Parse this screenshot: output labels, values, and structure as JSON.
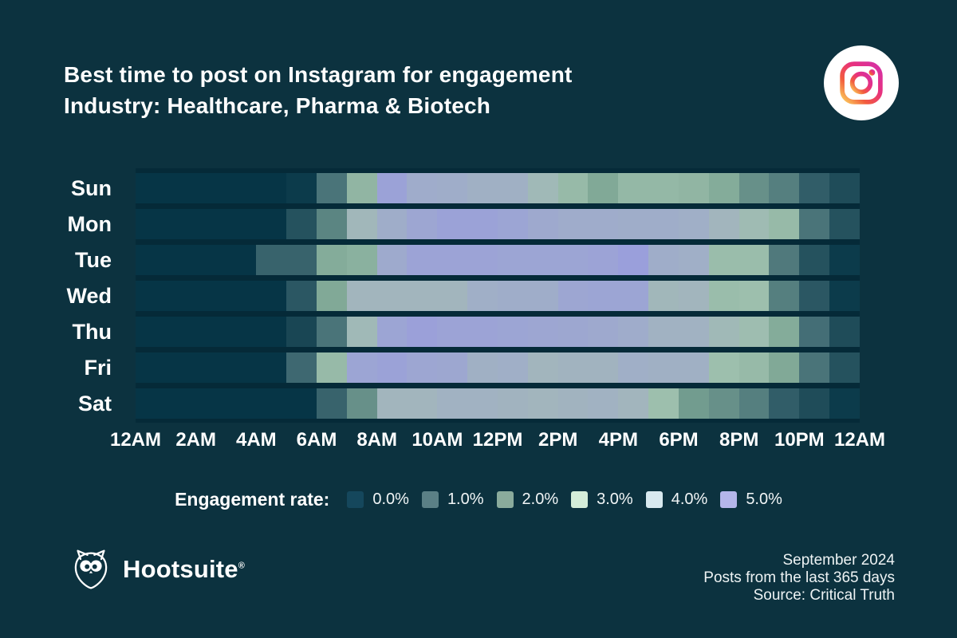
{
  "header": {
    "title_line1": "Best time to post on Instagram for engagement",
    "title_line2": "Industry: Healthcare, Pharma & Biotech"
  },
  "chart_data": {
    "type": "heatmap",
    "title": "Best time to post on Instagram for engagement",
    "subtitle": "Industry: Healthcare, Pharma & Biotech",
    "unit": "engagement rate %",
    "rows": [
      "Sun",
      "Mon",
      "Tue",
      "Wed",
      "Thu",
      "Fri",
      "Sat"
    ],
    "x_tick_labels": [
      "12AM",
      "2AM",
      "4AM",
      "6AM",
      "8AM",
      "10AM",
      "12PM",
      "2PM",
      "4PM",
      "6PM",
      "8PM",
      "10PM",
      "12AM"
    ],
    "hours_per_row": 24,
    "value_range": [
      0,
      5
    ],
    "series": [
      {
        "name": "Sun",
        "values": [
          0.0,
          0.0,
          0.0,
          0.0,
          0.0,
          0.1,
          1.1,
          2.6,
          4.8,
          4.1,
          4.0,
          3.8,
          3.8,
          3.3,
          2.8,
          2.1,
          2.7,
          2.7,
          2.6,
          2.2,
          1.6,
          1.3,
          0.7,
          0.4
        ]
      },
      {
        "name": "Mon",
        "values": [
          0.0,
          0.0,
          0.0,
          0.0,
          0.0,
          0.5,
          1.4,
          3.4,
          4.0,
          4.5,
          4.8,
          4.8,
          4.6,
          4.3,
          4.1,
          4.1,
          4.0,
          4.0,
          3.9,
          3.5,
          3.2,
          2.8,
          1.1,
          0.5
        ]
      },
      {
        "name": "Tue",
        "values": [
          0.0,
          0.0,
          0.0,
          0.0,
          0.8,
          0.8,
          2.2,
          2.4,
          4.2,
          4.7,
          4.7,
          4.7,
          4.6,
          4.6,
          4.6,
          4.7,
          5.0,
          4.0,
          3.9,
          2.9,
          2.9,
          1.2,
          0.5,
          0.1
        ]
      },
      {
        "name": "Wed",
        "values": [
          0.0,
          0.0,
          0.0,
          0.0,
          0.0,
          0.6,
          2.1,
          3.5,
          3.5,
          3.5,
          3.5,
          3.9,
          4.0,
          4.0,
          4.5,
          4.6,
          4.6,
          3.4,
          3.5,
          2.9,
          3.0,
          1.3,
          0.6,
          0.1
        ]
      },
      {
        "name": "Thu",
        "values": [
          0.0,
          0.0,
          0.0,
          0.0,
          0.0,
          0.3,
          1.1,
          3.3,
          4.6,
          4.9,
          4.7,
          4.7,
          4.6,
          4.5,
          4.4,
          4.3,
          4.1,
          3.7,
          3.7,
          3.3,
          3.1,
          2.2,
          1.0,
          0.4
        ]
      },
      {
        "name": "Fri",
        "values": [
          0.0,
          0.0,
          0.0,
          0.0,
          0.0,
          0.9,
          2.8,
          4.6,
          4.8,
          4.5,
          4.4,
          3.8,
          3.9,
          3.5,
          3.6,
          3.6,
          3.9,
          3.8,
          3.8,
          3.0,
          2.8,
          2.1,
          1.1,
          0.5
        ]
      },
      {
        "name": "Sat",
        "values": [
          0.0,
          0.0,
          0.0,
          0.0,
          0.0,
          0.0,
          0.8,
          1.6,
          3.5,
          3.5,
          3.7,
          3.7,
          3.6,
          3.5,
          3.6,
          3.7,
          3.5,
          3.0,
          1.8,
          1.6,
          1.3,
          0.7,
          0.4,
          0.1
        ]
      }
    ],
    "cell_colormap": [
      {
        "value": 0.0,
        "color": "#063546"
      },
      {
        "value": 1.0,
        "color": "#446e76"
      },
      {
        "value": 2.0,
        "color": "#7ea795"
      },
      {
        "value": 3.0,
        "color": "#9dbfad"
      },
      {
        "value": 3.5,
        "color": "#a2b5bd"
      },
      {
        "value": 4.0,
        "color": "#9fadc9"
      },
      {
        "value": 5.0,
        "color": "#9a9fdb"
      }
    ],
    "legend_position": "bottom"
  },
  "legend": {
    "title": "Engagement rate:",
    "items": [
      {
        "label": "0.0%",
        "color": "#15475c"
      },
      {
        "label": "1.0%",
        "color": "#5b8086"
      },
      {
        "label": "2.0%",
        "color": "#8aab9c"
      },
      {
        "label": "3.0%",
        "color": "#d4edd9"
      },
      {
        "label": "4.0%",
        "color": "#d8e9ef"
      },
      {
        "label": "5.0%",
        "color": "#b4b6ea"
      }
    ]
  },
  "footer": {
    "brand": "Hootsuite",
    "registered": "®",
    "meta_lines": [
      "September 2024",
      "Posts from the last 365 days",
      "Source: Critical Truth"
    ]
  },
  "colors": {
    "background": "#0c323f",
    "heatmap_backdrop": "#052a38",
    "text": "#ffffff"
  }
}
